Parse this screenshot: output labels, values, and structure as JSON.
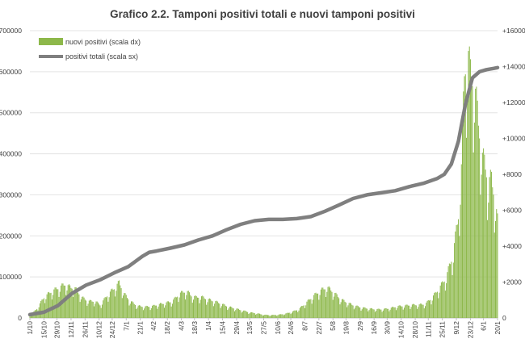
{
  "chart_data": {
    "type": "bar+line",
    "title": "Grafico 2.2. Tamponi positivi totali e nuovi tamponi positivi",
    "x_tick_labels": [
      "1/10",
      "15/10",
      "29/10",
      "12/11",
      "26/11",
      "10/12",
      "24/12",
      "7/1",
      "21/1",
      "4/2",
      "18/2",
      "4/3",
      "18/3",
      "1/4",
      "15/4",
      "29/4",
      "13/5",
      "27/5",
      "10/6",
      "24/6",
      "8/7",
      "22/7",
      "5/8",
      "19/8",
      "2/9",
      "16/9",
      "30/9",
      "14/10",
      "28/10",
      "11/11",
      "25/11",
      "9/12",
      "23/12",
      "6/1",
      "20/1"
    ],
    "y_left": {
      "min": 0,
      "max": 700000,
      "ticks": [
        "0",
        "100000",
        "200000",
        "300000",
        "400000",
        "500000",
        "600000",
        "700000"
      ]
    },
    "y_right": {
      "min": 0,
      "max": 16000,
      "ticks": [
        "0",
        "+2000",
        "+4000",
        "+6000",
        "+8000",
        "+10000",
        "+12000",
        "+14000",
        "+16000"
      ]
    },
    "legend": {
      "position": "top-left",
      "entries": [
        {
          "label": "nuovi positivi (scala dx)",
          "color": "#8db84a"
        },
        {
          "label": "positivi totali (scala sx)",
          "color": "#7f7f7f"
        }
      ]
    },
    "grid": "horizontal",
    "series": [
      {
        "name": "nuovi positivi (scala dx)",
        "type": "bar",
        "axis": "right",
        "color": "#8db84a",
        "anchors": [
          [
            0,
            100
          ],
          [
            7,
            500
          ],
          [
            14,
            1100
          ],
          [
            21,
            1400
          ],
          [
            28,
            1600
          ],
          [
            35,
            1800
          ],
          [
            40,
            1650
          ],
          [
            45,
            1600
          ],
          [
            52,
            1100
          ],
          [
            58,
            900
          ],
          [
            65,
            900
          ],
          [
            70,
            700
          ],
          [
            77,
            1200
          ],
          [
            84,
            1600
          ],
          [
            89,
            1900
          ],
          [
            94,
            1300
          ],
          [
            100,
            900
          ],
          [
            107,
            650
          ],
          [
            114,
            600
          ],
          [
            121,
            620
          ],
          [
            128,
            720
          ],
          [
            135,
            800
          ],
          [
            142,
            900
          ],
          [
            149,
            1300
          ],
          [
            156,
            1450
          ],
          [
            161,
            1200
          ],
          [
            166,
            1100
          ],
          [
            170,
            1150
          ],
          [
            177,
            1000
          ],
          [
            184,
            900
          ],
          [
            191,
            750
          ],
          [
            198,
            600
          ],
          [
            205,
            500
          ],
          [
            212,
            400
          ],
          [
            219,
            300
          ],
          [
            226,
            250
          ],
          [
            233,
            170
          ],
          [
            240,
            150
          ],
          [
            247,
            170
          ],
          [
            254,
            220
          ],
          [
            261,
            320
          ],
          [
            268,
            470
          ],
          [
            275,
            800
          ],
          [
            282,
            1150
          ],
          [
            289,
            1450
          ],
          [
            296,
            1650
          ],
          [
            300,
            1500
          ],
          [
            303,
            1350
          ],
          [
            310,
            1000
          ],
          [
            317,
            800
          ],
          [
            324,
            650
          ],
          [
            331,
            550
          ],
          [
            338,
            500
          ],
          [
            345,
            460
          ],
          [
            352,
            470
          ],
          [
            359,
            520
          ],
          [
            366,
            620
          ],
          [
            373,
            650
          ],
          [
            380,
            700
          ],
          [
            387,
            700
          ],
          [
            394,
            750
          ],
          [
            401,
            1100
          ],
          [
            408,
            1600
          ],
          [
            415,
            2200
          ],
          [
            422,
            3500
          ],
          [
            427,
            5500
          ],
          [
            430,
            8000
          ],
          [
            433,
            13200
          ],
          [
            436,
            14300
          ],
          [
            439,
            13100
          ],
          [
            442,
            12800
          ],
          [
            445,
            11500
          ],
          [
            448,
            10000
          ],
          [
            451,
            8600
          ],
          [
            454,
            8100
          ],
          [
            457,
            7300
          ],
          [
            460,
            7400
          ],
          [
            463,
            6600
          ],
          [
            466,
            5200
          ]
        ]
      },
      {
        "name": "positivi totali (scala sx)",
        "type": "line",
        "axis": "left",
        "color": "#7f7f7f",
        "points": [
          [
            0,
            8000
          ],
          [
            14,
            14000
          ],
          [
            28,
            30000
          ],
          [
            35,
            45000
          ],
          [
            42,
            60000
          ],
          [
            56,
            80000
          ],
          [
            70,
            93000
          ],
          [
            84,
            110000
          ],
          [
            98,
            125000
          ],
          [
            112,
            150000
          ],
          [
            119,
            160000
          ],
          [
            126,
            163000
          ],
          [
            140,
            170000
          ],
          [
            154,
            178000
          ],
          [
            168,
            190000
          ],
          [
            182,
            200000
          ],
          [
            196,
            215000
          ],
          [
            210,
            228000
          ],
          [
            224,
            237000
          ],
          [
            238,
            240000
          ],
          [
            252,
            240000
          ],
          [
            266,
            242000
          ],
          [
            280,
            247000
          ],
          [
            294,
            260000
          ],
          [
            308,
            275000
          ],
          [
            322,
            291000
          ],
          [
            336,
            300000
          ],
          [
            350,
            305000
          ],
          [
            364,
            310000
          ],
          [
            378,
            320000
          ],
          [
            392,
            328000
          ],
          [
            406,
            340000
          ],
          [
            413,
            350000
          ],
          [
            420,
            375000
          ],
          [
            427,
            430000
          ],
          [
            434,
            520000
          ],
          [
            441,
            585000
          ],
          [
            448,
            600000
          ],
          [
            455,
            605000
          ],
          [
            462,
            608000
          ],
          [
            466,
            610000
          ]
        ]
      }
    ],
    "x_count": 467
  }
}
